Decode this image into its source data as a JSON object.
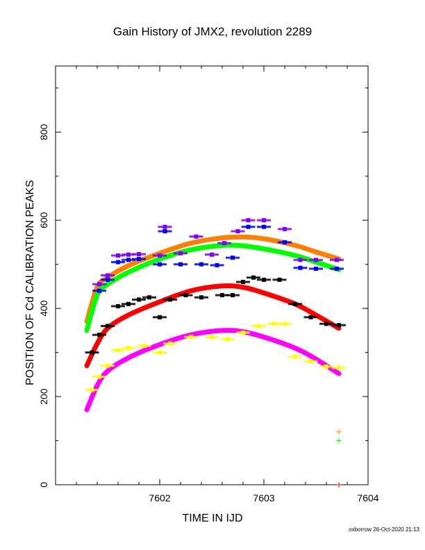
{
  "chart_data": {
    "type": "scatter",
    "title": "Gain History of JMX2, revolution 2289",
    "xlabel": "TIME IN IJD",
    "ylabel": "POSITION OF Cd CALIBRATION PEAKS",
    "xlim": [
      7601.0,
      7604.0
    ],
    "ylim": [
      0,
      950
    ],
    "xticks": [
      7602,
      7603,
      7604
    ],
    "yticks": [
      0,
      200,
      400,
      600,
      800
    ],
    "grid": false,
    "fits": [
      {
        "color": "#ff8000",
        "x": [
          7601.3,
          7601.4,
          7601.5,
          7601.7,
          7602.0,
          7602.3,
          7602.6,
          7602.8,
          7603.0,
          7603.3,
          7603.5,
          7603.72
        ],
        "y": [
          370,
          448,
          470,
          497,
          525,
          548,
          560,
          562,
          558,
          543,
          528,
          512
        ]
      },
      {
        "color": "#00ff00",
        "x": [
          7601.3,
          7601.4,
          7601.5,
          7601.7,
          7602.0,
          7602.3,
          7602.6,
          7602.8,
          7603.0,
          7603.3,
          7603.5,
          7603.72
        ],
        "y": [
          350,
          430,
          455,
          482,
          512,
          533,
          543,
          542,
          535,
          520,
          505,
          488
        ]
      },
      {
        "color": "#ff0000",
        "x": [
          7601.3,
          7601.4,
          7601.5,
          7601.7,
          7602.0,
          7602.3,
          7602.6,
          7602.8,
          7603.0,
          7603.3,
          7603.5,
          7603.72
        ],
        "y": [
          270,
          320,
          355,
          385,
          415,
          440,
          451,
          448,
          435,
          410,
          385,
          355
        ]
      },
      {
        "color": "#ff00ff",
        "x": [
          7601.3,
          7601.4,
          7601.5,
          7601.7,
          7602.0,
          7602.3,
          7602.6,
          7602.8,
          7603.0,
          7603.3,
          7603.5,
          7603.72
        ],
        "y": [
          170,
          225,
          258,
          288,
          318,
          340,
          350,
          347,
          335,
          310,
          285,
          252
        ]
      }
    ],
    "points": [
      {
        "color": "#8000ff",
        "x": [
          7601.42,
          7601.5,
          7601.6,
          7601.7,
          7601.8,
          7602.0,
          7602.05,
          7602.2,
          7602.35,
          7602.5,
          7602.62,
          7602.75,
          7602.85,
          7603.0,
          7603.2,
          7603.35,
          7603.5,
          7603.7
        ],
        "y": [
          455,
          475,
          520,
          522,
          523,
          520,
          585,
          525,
          563,
          522,
          548,
          575,
          600,
          600,
          580,
          510,
          510,
          510
        ]
      },
      {
        "color": "#0000ff",
        "x": [
          7601.42,
          7601.5,
          7601.6,
          7601.7,
          7601.8,
          7602.0,
          7602.05,
          7602.2,
          7602.4,
          7602.55,
          7602.7,
          7602.85,
          7603.0,
          7603.2,
          7603.35,
          7603.5,
          7603.7
        ],
        "y": [
          440,
          465,
          505,
          510,
          512,
          500,
          575,
          500,
          500,
          498,
          515,
          585,
          585,
          550,
          492,
          490,
          490
        ]
      },
      {
        "color": "#000000",
        "x": [
          7601.35,
          7601.42,
          7601.5,
          7601.6,
          7601.7,
          7601.8,
          7601.9,
          7602.0,
          7602.1,
          7602.25,
          7602.4,
          7602.6,
          7602.7,
          7602.8,
          7602.9,
          7603.0,
          7603.15,
          7603.3,
          7603.45,
          7603.6,
          7603.72
        ],
        "y": [
          300,
          340,
          360,
          405,
          410,
          420,
          425,
          380,
          420,
          430,
          425,
          430,
          430,
          460,
          470,
          465,
          465,
          410,
          380,
          365,
          362
        ]
      },
      {
        "color": "#ffff00",
        "x": [
          7601.35,
          7601.42,
          7601.5,
          7601.6,
          7601.7,
          7601.85,
          7602.0,
          7602.1,
          7602.3,
          7602.5,
          7602.65,
          7602.8,
          7602.95,
          7603.1,
          7603.2,
          7603.3,
          7603.45,
          7603.6,
          7603.72
        ],
        "y": [
          215,
          245,
          270,
          305,
          310,
          315,
          300,
          320,
          335,
          335,
          330,
          345,
          360,
          365,
          365,
          290,
          280,
          268,
          265
        ]
      }
    ],
    "markers": [
      {
        "color": "#ff8000",
        "x": 7603.72,
        "y": 120
      },
      {
        "color": "#00ff00",
        "x": 7603.72,
        "y": 100
      },
      {
        "color": "#ff0000",
        "x": 7603.72,
        "y": 0
      }
    ]
  },
  "credit": "oxborrow 26-Oct-2020 21:13"
}
